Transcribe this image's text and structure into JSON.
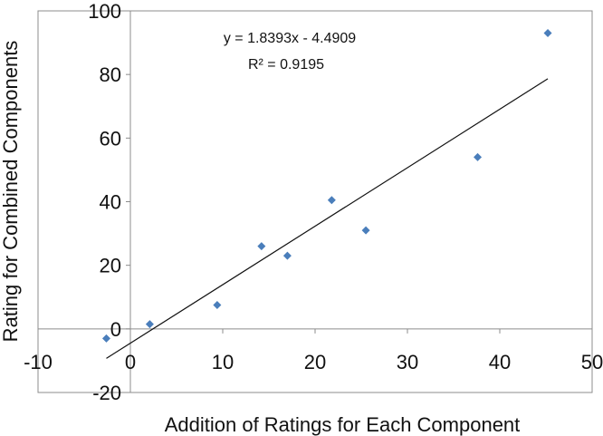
{
  "chart_data": {
    "type": "scatter",
    "title": "",
    "xlabel": "Addition of Ratings for Each Component",
    "ylabel": "Rating for Combined Components",
    "xlim": [
      -10,
      50
    ],
    "ylim": [
      -20,
      100
    ],
    "x_ticks": [
      -10,
      0,
      10,
      20,
      30,
      40,
      50
    ],
    "y_ticks": [
      -20,
      0,
      20,
      40,
      60,
      80,
      100
    ],
    "x_tick_labels": [
      "-10",
      "0",
      "10",
      "20",
      "30",
      "40",
      "50"
    ],
    "y_tick_labels": [
      "-20",
      "0",
      "20",
      "40",
      "60",
      "80",
      "100"
    ],
    "grid": false,
    "legend": "none",
    "series": [
      {
        "marker": "diamond",
        "color": "#4a7ebb",
        "points": [
          {
            "x": -2.6,
            "y": -3
          },
          {
            "x": 2.1,
            "y": 1.5
          },
          {
            "x": 9.4,
            "y": 7.5
          },
          {
            "x": 14.2,
            "y": 26
          },
          {
            "x": 17.0,
            "y": 23
          },
          {
            "x": 21.8,
            "y": 40.5
          },
          {
            "x": 25.5,
            "y": 31
          },
          {
            "x": 37.6,
            "y": 54
          },
          {
            "x": 45.2,
            "y": 93
          }
        ]
      }
    ],
    "trendline": {
      "type": "linear",
      "slope": 1.8393,
      "intercept": -4.4909,
      "x_range": [
        -2.6,
        45.2
      ],
      "color": "#111111"
    },
    "annotations": {
      "equation": "y = 1.8393x - 4.4909",
      "r_squared": "R² = 0.9195"
    }
  }
}
